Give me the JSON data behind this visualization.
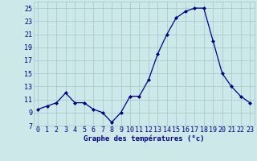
{
  "hours": [
    0,
    1,
    2,
    3,
    4,
    5,
    6,
    7,
    8,
    9,
    10,
    11,
    12,
    13,
    14,
    15,
    16,
    17,
    18,
    19,
    20,
    21,
    22,
    23
  ],
  "temps": [
    9.5,
    10,
    10.5,
    12,
    10.5,
    10.5,
    9.5,
    9,
    7.5,
    9,
    11.5,
    11.5,
    14,
    18,
    21,
    23.5,
    24.5,
    25,
    25,
    20,
    15,
    13,
    11.5,
    10.5
  ],
  "background_color": "#cce8e8",
  "grid_color": "#aacccc",
  "line_color": "#000088",
  "marker_color": "#000088",
  "xlabel": "Graphe des températures (°c)",
  "xlabel_color": "#000088",
  "tick_color": "#000088",
  "label_fontsize": 6.0,
  "xlabel_fontsize": 6.5,
  "ylim": [
    7,
    26
  ],
  "yticks": [
    7,
    9,
    11,
    13,
    15,
    17,
    19,
    21,
    23,
    25
  ],
  "xlim": [
    -0.5,
    23.5
  ],
  "xticks": [
    0,
    1,
    2,
    3,
    4,
    5,
    6,
    7,
    8,
    9,
    10,
    11,
    12,
    13,
    14,
    15,
    16,
    17,
    18,
    19,
    20,
    21,
    22,
    23
  ]
}
